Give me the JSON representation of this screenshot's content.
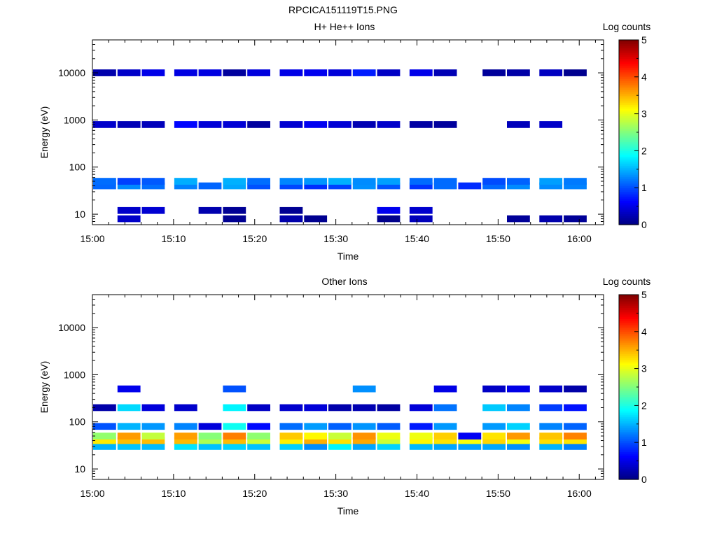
{
  "figure_title": "RPCICA151119T15.PNG",
  "chart_data": [
    {
      "type": "heatmap",
      "title": "H+ He++ Ions",
      "xlabel": "Time",
      "ylabel": "Energy (eV)",
      "x_ticks": [
        "15:00",
        "15:10",
        "15:20",
        "15:30",
        "15:40",
        "15:50",
        "16:00"
      ],
      "x_range": [
        "15:00",
        "16:03"
      ],
      "y_scale": "log",
      "y_ticks": [
        10,
        100,
        1000,
        10000
      ],
      "y_range": [
        6,
        50000
      ],
      "colorbar": {
        "label": "Log counts",
        "range": [
          0,
          5
        ],
        "ticks": [
          0,
          1,
          2,
          3,
          4,
          5
        ]
      },
      "time_bins_start": [
        "15:00",
        "15:03",
        "15:06",
        "15:10",
        "15:13",
        "15:16",
        "15:19",
        "15:23",
        "15:26",
        "15:29",
        "15:32",
        "15:35",
        "15:39",
        "15:42",
        "15:45",
        "15:48",
        "15:51",
        "15:55",
        "15:58"
      ],
      "energy_bands": [
        {
          "energy": 40,
          "values": [
            1.2,
            1.3,
            1.1,
            1.2,
            1.1,
            1.4,
            1.0,
            1.0,
            1.0,
            1.1,
            1.2,
            1.1,
            0.9,
            1.1,
            0.8,
            1.3,
            1.4,
            1.2,
            1.4
          ]
        },
        {
          "energy": 50,
          "values": [
            1.0,
            1.0,
            1.2,
            1.4,
            null,
            1.6,
            1.2,
            1.2,
            1.5,
            1.4,
            1.4,
            1.3,
            1.0,
            1.2,
            null,
            1.1,
            1.2,
            1.3,
            1.2
          ]
        },
        {
          "energy": 12,
          "values": [
            null,
            0.3,
            0.3,
            null,
            0.3,
            0.2,
            null,
            0.2,
            null,
            null,
            null,
            0.5,
            0.3,
            null,
            null,
            null,
            null,
            null,
            null
          ]
        },
        {
          "energy": 8,
          "values": [
            null,
            0.3,
            null,
            null,
            null,
            0.2,
            null,
            0.2,
            0.2,
            null,
            null,
            0.2,
            0.2,
            null,
            null,
            null,
            0.2,
            0.2,
            0.2
          ]
        },
        {
          "energy": 800,
          "values": [
            0.3,
            0.4,
            0.3,
            0.5,
            0.4,
            0.3,
            0.3,
            0.3,
            0.4,
            0.5,
            0.4,
            0.3,
            0.3,
            0.2,
            null,
            null,
            0.2,
            0.3,
            null
          ]
        },
        {
          "energy": 10000,
          "values": [
            0.2,
            0.3,
            0.4,
            0.4,
            0.5,
            0.3,
            0.4,
            0.5,
            0.5,
            0.6,
            0.6,
            0.5,
            0.5,
            0.4,
            null,
            0.2,
            0.2,
            0.3,
            0.2
          ]
        }
      ]
    },
    {
      "type": "heatmap",
      "title": "Other Ions",
      "xlabel": "Time",
      "ylabel": "Energy (eV)",
      "x_ticks": [
        "15:00",
        "15:10",
        "15:20",
        "15:30",
        "15:40",
        "15:50",
        "16:00"
      ],
      "x_range": [
        "15:00",
        "16:03"
      ],
      "y_scale": "log",
      "y_ticks": [
        10,
        100,
        1000,
        10000
      ],
      "y_range": [
        6,
        50000
      ],
      "colorbar": {
        "label": "Log counts",
        "range": [
          0,
          5
        ],
        "ticks": [
          0,
          1,
          2,
          3,
          4,
          5
        ]
      },
      "time_bins_start": [
        "15:00",
        "15:03",
        "15:06",
        "15:10",
        "15:13",
        "15:16",
        "15:19",
        "15:23",
        "15:26",
        "15:29",
        "15:32",
        "15:35",
        "15:39",
        "15:42",
        "15:45",
        "15:48",
        "15:51",
        "15:55",
        "15:58"
      ],
      "energy_bands": [
        {
          "energy": 30,
          "values": [
            1.6,
            1.7,
            1.7,
            1.6,
            1.6,
            1.5,
            1.6,
            1.5,
            1.4,
            1.7,
            1.6,
            1.6,
            1.5,
            1.5,
            1.4,
            1.6,
            1.5,
            1.4,
            1.3
          ]
        },
        {
          "energy": 40,
          "values": [
            3.2,
            3.6,
            3.4,
            3.5,
            2.7,
            3.3,
            3.0,
            3.3,
            3.4,
            3.3,
            3.4,
            3.0,
            3.1,
            3.3,
            3.0,
            3.4,
            3.0,
            3.4,
            3.3
          ]
        },
        {
          "energy": 50,
          "values": [
            2.5,
            3.6,
            3.0,
            3.7,
            2.4,
            3.9,
            2.5,
            3.5,
            3.2,
            3.0,
            3.8,
            3.0,
            2.9,
            3.2,
            0.4,
            3.3,
            3.5,
            3.5,
            3.7
          ]
        },
        {
          "energy": 80,
          "values": [
            1.0,
            1.6,
            1.3,
            1.4,
            0.5,
            2.0,
            0.6,
            1.2,
            1.3,
            1.2,
            1.2,
            1.2,
            0.9,
            1.5,
            null,
            1.5,
            1.5,
            1.2,
            1.0
          ]
        },
        {
          "energy": 200,
          "values": [
            0.3,
            1.6,
            0.4,
            0.4,
            null,
            2.0,
            0.4,
            0.3,
            0.4,
            0.3,
            0.4,
            0.3,
            0.3,
            1.2,
            null,
            1.7,
            1.4,
            0.8,
            0.6
          ]
        },
        {
          "energy": 500,
          "values": [
            null,
            0.4,
            null,
            null,
            null,
            1.0,
            null,
            null,
            null,
            null,
            1.2,
            null,
            null,
            0.4,
            null,
            0.5,
            0.4,
            0.3,
            0.3
          ]
        }
      ]
    }
  ]
}
